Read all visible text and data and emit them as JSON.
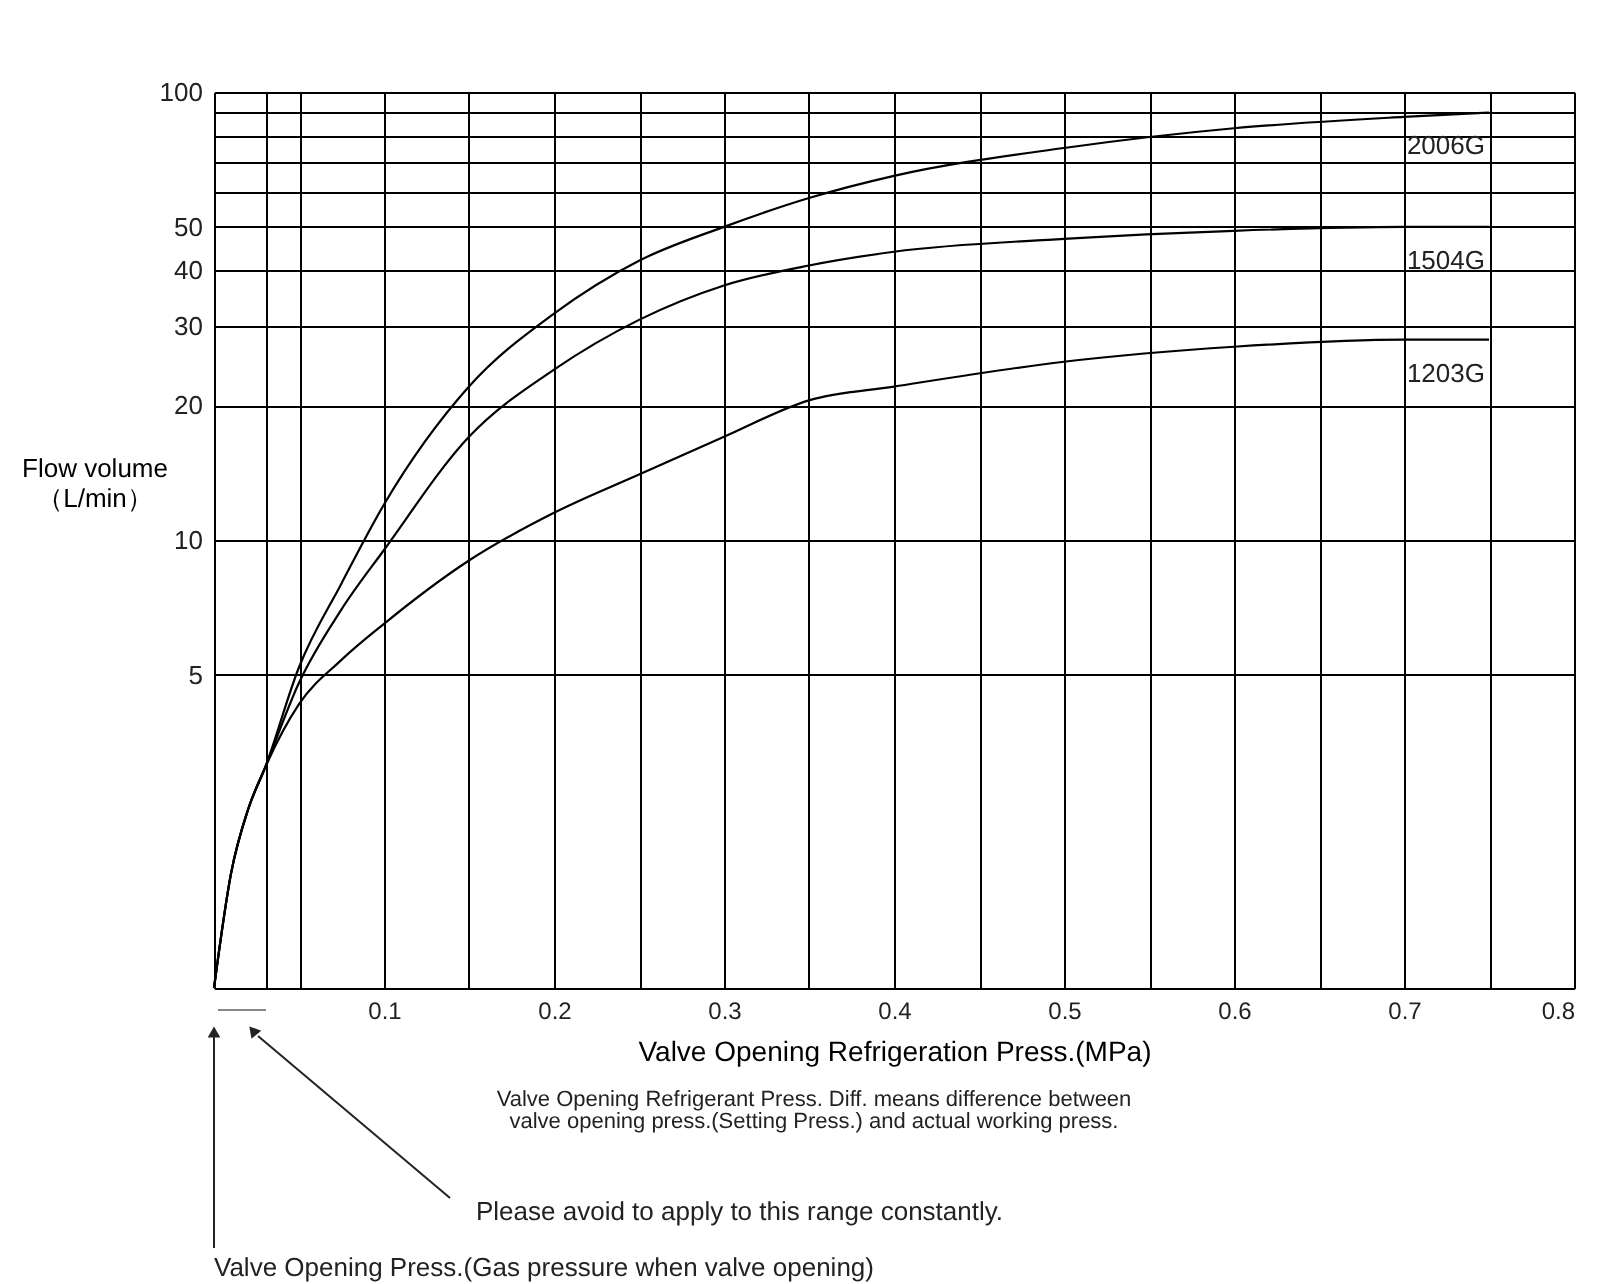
{
  "chart_data": {
    "type": "line",
    "xlabel": "Valve Opening Refrigeration Press.(MPa)",
    "ylabel": "Flow volume （L/min）",
    "x": [
      0,
      0.01,
      0.02,
      0.03,
      0.05,
      0.075,
      0.1,
      0.15,
      0.2,
      0.25,
      0.3,
      0.35,
      0.4,
      0.5,
      0.6,
      0.7,
      0.75
    ],
    "series": [
      {
        "name": "2006G",
        "color": "#000000",
        "values": [
          1,
          1.8,
          2.5,
          3.1,
          5.2,
          8,
          12,
          22,
          32,
          42,
          50,
          58,
          65,
          75,
          83,
          88,
          90
        ]
      },
      {
        "name": "1504G",
        "color": "#000000",
        "values": [
          1,
          1.8,
          2.5,
          3.1,
          4.8,
          7,
          9.5,
          17,
          24,
          31,
          37,
          41,
          44,
          47,
          49,
          50,
          50
        ]
      },
      {
        "name": "1203G",
        "color": "#000000",
        "values": [
          1,
          1.8,
          2.5,
          3.1,
          4.3,
          5.4,
          6.5,
          9,
          11.5,
          14,
          17,
          20.5,
          22,
          25,
          27,
          28,
          28
        ]
      }
    ],
    "xlim": [
      0,
      0.8
    ],
    "xticks": [
      {
        "value": 0.03,
        "label": null
      },
      {
        "value": 0.05,
        "label": null
      },
      0.1,
      {
        "value": 0.15,
        "label": null
      },
      0.2,
      {
        "value": 0.25,
        "label": null
      },
      0.3,
      {
        "value": 0.35,
        "label": null
      },
      0.4,
      {
        "value": 0.45,
        "label": null
      },
      0.5,
      {
        "value": 0.55,
        "label": null
      },
      0.6,
      {
        "value": 0.65,
        "label": null
      },
      0.7,
      {
        "value": 0.75,
        "label": null
      },
      0.8
    ],
    "ylim": [
      1,
      100
    ],
    "yticks": [
      5,
      10,
      20,
      30,
      40,
      50,
      {
        "value": 60,
        "label": null
      },
      {
        "value": 70,
        "label": null
      },
      {
        "value": 80,
        "label": null
      },
      {
        "value": 90,
        "label": null
      },
      100
    ],
    "log": "y",
    "grid": true,
    "legend": false,
    "marker": "none",
    "line_style": "solid",
    "annotations": [
      "Valve Opening Refrigerant Press. Diff. means difference between",
      "valve opening press.(Setting Press.) and actual working press.",
      "Please avoid to apply to this range constantly.",
      "Valve Opening Press.(Gas pressure when valve opening)"
    ]
  }
}
